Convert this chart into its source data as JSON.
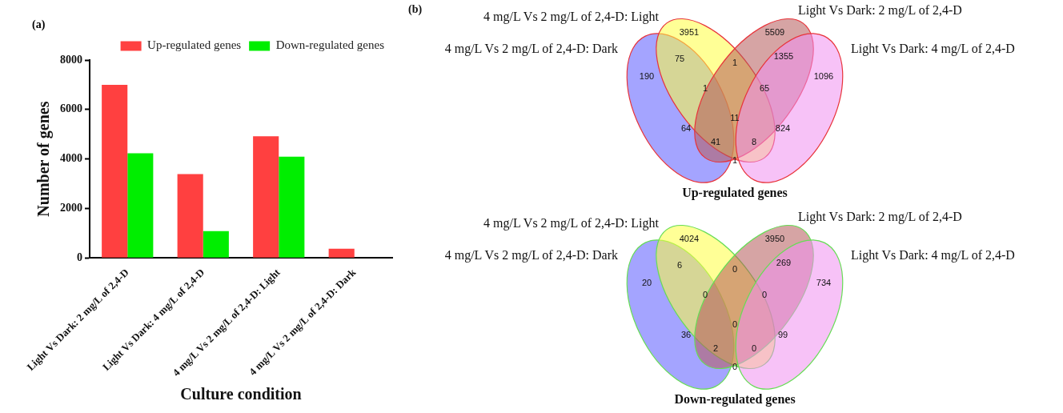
{
  "chart_data": [
    {
      "type": "bar",
      "xlabel": "Culture condition",
      "ylabel": "Number of genes",
      "annotations": [
        "(a)"
      ],
      "categories": [
        "Light Vs Dark: 2 mg/L of 2,4-D",
        "Light Vs Dark: 4 mg/L of 2,4-D",
        "4 mg/L Vs 2 mg/L of 2,4-D: Light",
        "4 mg/L Vs 2 mg/L of 2,4-D: Dark"
      ],
      "series": [
        {
          "name": "Up-regulated genes",
          "color": "#ff4040",
          "values": [
            7000,
            3390,
            4920,
            370
          ]
        },
        {
          "name": "Down-regulated genes",
          "color": "#00ee00",
          "values": [
            4230,
            1080,
            4090,
            0
          ]
        }
      ],
      "ylim": [
        0,
        8000
      ],
      "yticks": [
        0,
        2000,
        4000,
        6000,
        8000
      ],
      "grid": false,
      "legend": "top right"
    },
    {
      "type": "other",
      "title": "Up-regulated genes",
      "color": "#e8333a",
      "colors": [
        "#5a5aff",
        "#ffff40",
        "#b45a5a",
        "#f090f0"
      ],
      "annotations": [
        "4 mg/L Vs 2 mg/L of 2,4-D: Dark",
        "4 mg/L Vs 2 mg/L of 2,4-D: Light",
        "Light Vs Dark: 2 mg/L of 2,4-D",
        "Light Vs Dark: 4 mg/L of 2,4-D",
        "3951",
        "5509",
        "75",
        "1",
        "1355",
        "190",
        "1096",
        "1",
        "65",
        "11",
        "64",
        "824",
        "41",
        "8",
        "1",
        "(b)"
      ]
    },
    {
      "type": "other",
      "title": "Down-regulated genes",
      "color": "#66dd55",
      "colors": [
        "#5a5aff",
        "#ffff40",
        "#b45a5a",
        "#f090f0"
      ],
      "annotations": [
        "4 mg/L Vs 2 mg/L of 2,4-D: Dark",
        "4 mg/L Vs 2 mg/L of 2,4-D: Light",
        "Light Vs Dark: 2 mg/L of 2,4-D",
        "Light Vs Dark: 4 mg/L of 2,4-D",
        "4024",
        "3950",
        "6",
        "0",
        "269",
        "20",
        "734",
        "0",
        "0",
        "0",
        "36",
        "99",
        "2",
        "0",
        "0"
      ]
    }
  ]
}
